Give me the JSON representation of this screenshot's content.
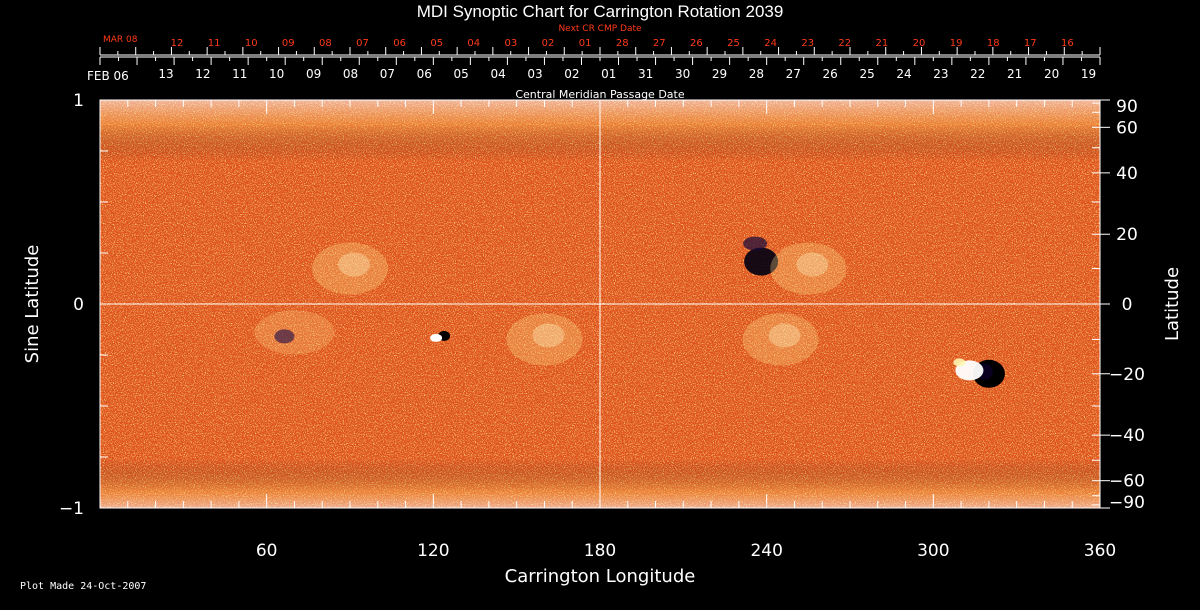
{
  "title": "MDI Synoptic Chart for Carrington Rotation 2039",
  "footer": "Plot Made 24-Oct-2007",
  "colors": {
    "background": "#000000",
    "foreground": "#ffffff",
    "accent": "#ff3a1a",
    "map_base": "#e0521c"
  },
  "chart_data": {
    "type": "heatmap",
    "title": "MDI Synoptic Chart for Carrington Rotation 2039",
    "xlabel": "Carrington Longitude",
    "ylabel_left": "Sine Latitude",
    "ylabel_right": "Latitude",
    "xlim": [
      0,
      360
    ],
    "ylim": [
      -1,
      1
    ],
    "grid": "center crosshair at longitude 180 and latitude 0",
    "x_ticks": [
      60,
      120,
      180,
      240,
      300,
      360
    ],
    "y_left_ticks": [
      {
        "value": 1,
        "label": "1"
      },
      {
        "value": 0,
        "label": "0"
      },
      {
        "value": -1,
        "label": "−1"
      }
    ],
    "y_right_ticks": [
      {
        "lat": 90,
        "label": "90"
      },
      {
        "lat": 60,
        "label": "60"
      },
      {
        "lat": 40,
        "label": "40"
      },
      {
        "lat": 20,
        "label": "20"
      },
      {
        "lat": 0,
        "label": "0"
      },
      {
        "lat": -20,
        "label": "−20"
      },
      {
        "lat": -40,
        "label": "−40"
      },
      {
        "lat": -60,
        "label": "−60"
      },
      {
        "lat": -90,
        "label": "−90"
      }
    ],
    "cmp_axis": {
      "label": "Central Meridian Passage Date",
      "start_label": "FEB 06",
      "dates": [
        "13",
        "12",
        "11",
        "10",
        "09",
        "08",
        "07",
        "06",
        "05",
        "04",
        "03",
        "02",
        "01",
        "31",
        "30",
        "29",
        "28",
        "27",
        "26",
        "25",
        "24",
        "23",
        "22",
        "21",
        "20",
        "19"
      ]
    },
    "next_cmp_axis": {
      "label": "Next CR CMP Date",
      "start_label": "MAR 08",
      "dates": [
        "12",
        "11",
        "10",
        "09",
        "08",
        "07",
        "06",
        "05",
        "04",
        "03",
        "02",
        "01",
        "28",
        "27",
        "26",
        "25",
        "24",
        "23",
        "22",
        "21",
        "20",
        "19",
        "18",
        "17",
        "16"
      ]
    },
    "features": [
      {
        "kind": "strong negative polarity spot",
        "lon": 320,
        "lat": -20
      },
      {
        "kind": "strong positive polarity region",
        "lon": 313,
        "lat": -19
      },
      {
        "kind": "negative polarity spot",
        "lon": 238,
        "lat": 12
      },
      {
        "kind": "positive polarity plage",
        "lon": 255,
        "lat": 10
      },
      {
        "kind": "positive polarity plage",
        "lon": 245,
        "lat": -10
      },
      {
        "kind": "small negative spot",
        "lon": 121,
        "lat": -9
      },
      {
        "kind": "positive polarity plage",
        "lon": 90,
        "lat": 10
      },
      {
        "kind": "mixed polarity plage",
        "lon": 70,
        "lat": -8
      },
      {
        "kind": "positive polarity plage",
        "lon": 160,
        "lat": -10
      }
    ]
  }
}
